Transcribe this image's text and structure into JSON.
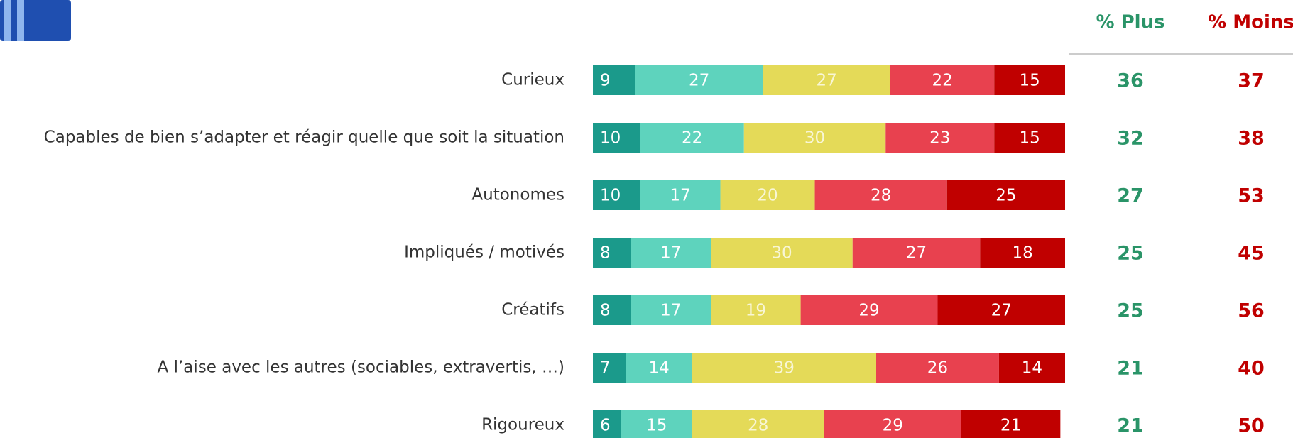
{
  "chart_data": {
    "type": "stacked-barh",
    "categories": [
      "Curieux",
      "Capables de bien s’adapter et réagir quelle que soit la situation",
      "Autonomes",
      "Impliqués / motivés",
      "Créatifs",
      "A l’aise avec les autres (sociables, extravertis, …)",
      "Rigoureux"
    ],
    "xlim": [
      0,
      100
    ],
    "series": [
      {
        "color": "#1b9a8b",
        "values": [
          9,
          10,
          10,
          8,
          8,
          7,
          6
        ]
      },
      {
        "color": "#5ed3bd",
        "values": [
          27,
          22,
          17,
          17,
          17,
          14,
          15
        ]
      },
      {
        "color": "#e4da58",
        "values": [
          27,
          30,
          20,
          30,
          19,
          39,
          28
        ]
      },
      {
        "color": "#e8414f",
        "values": [
          22,
          23,
          28,
          27,
          29,
          26,
          29
        ]
      },
      {
        "color": "#c00000",
        "values": [
          15,
          15,
          25,
          18,
          27,
          14,
          21
        ]
      }
    ],
    "columns": [
      {
        "header": "% Plus",
        "color": "#2a9468",
        "values": [
          36,
          32,
          27,
          25,
          25,
          21,
          21
        ]
      },
      {
        "header": "% Moins",
        "color": "#c00000",
        "values": [
          37,
          38,
          53,
          45,
          56,
          40,
          50
        ]
      }
    ]
  }
}
